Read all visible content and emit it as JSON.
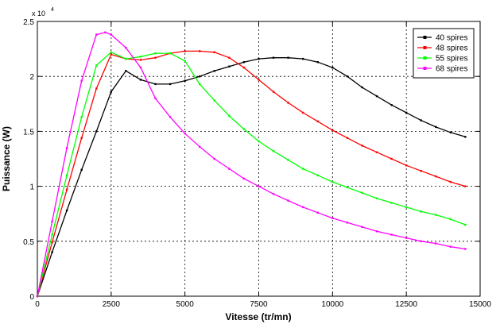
{
  "chart_data": {
    "type": "line",
    "title": "",
    "xlabel": "Vitesse (tr/mn)",
    "ylabel": "Puissance (W)",
    "xlim": [
      0,
      15000
    ],
    "ylim": [
      0,
      25000
    ],
    "x_ticks": [
      0,
      2500,
      5000,
      7500,
      10000,
      12500,
      15000
    ],
    "y_tick_labels": [
      "0",
      "0.5",
      "1",
      "1.5",
      "2",
      "2.5"
    ],
    "y_tick_values": [
      0,
      5000,
      10000,
      15000,
      20000,
      25000
    ],
    "y_exponent": "x 10",
    "y_exponent_power": "4",
    "grid": true,
    "legend_position": "top-right",
    "series": [
      {
        "name": "40 spires",
        "color": "#000000",
        "x": [
          0,
          500,
          1000,
          1500,
          2000,
          2500,
          3000,
          3500,
          4000,
          4500,
          5000,
          5500,
          6000,
          6500,
          7000,
          7500,
          8000,
          8500,
          9000,
          9500,
          10000,
          10500,
          11000,
          11500,
          12000,
          12500,
          13000,
          13500,
          14000,
          14500
        ],
        "y": [
          0,
          4000,
          7800,
          11500,
          15000,
          18600,
          20500,
          19700,
          19300,
          19300,
          19600,
          20000,
          20500,
          20900,
          21300,
          21600,
          21700,
          21700,
          21600,
          21300,
          20800,
          20000,
          19000,
          18200,
          17400,
          16700,
          16000,
          15400,
          14900,
          14500
        ]
      },
      {
        "name": "48 spires",
        "color": "#ff0000",
        "x": [
          0,
          500,
          1000,
          1500,
          2000,
          2500,
          3000,
          3500,
          4000,
          4500,
          5000,
          5500,
          6000,
          6500,
          7000,
          7500,
          8000,
          8500,
          9000,
          9500,
          10000,
          10500,
          11000,
          11500,
          12000,
          12500,
          13000,
          13500,
          14000,
          14500
        ],
        "y": [
          0,
          4900,
          9700,
          14400,
          18900,
          22000,
          21600,
          21500,
          21700,
          22100,
          22300,
          22300,
          22200,
          21700,
          20800,
          19700,
          18600,
          17600,
          16700,
          15900,
          15100,
          14400,
          13700,
          13100,
          12500,
          11900,
          11400,
          10900,
          10400,
          10000
        ]
      },
      {
        "name": "55 spires",
        "color": "#00ff00",
        "x": [
          0,
          500,
          1000,
          1500,
          2000,
          2500,
          3000,
          3500,
          4000,
          4500,
          5000,
          5500,
          6000,
          6500,
          7000,
          7500,
          8000,
          8500,
          9000,
          9500,
          10000,
          10500,
          11000,
          11500,
          12000,
          12500,
          13000,
          13500,
          14000,
          14500
        ],
        "y": [
          0,
          5600,
          11000,
          16300,
          21000,
          22200,
          21600,
          21800,
          22100,
          22100,
          21400,
          19300,
          17800,
          16400,
          15200,
          14100,
          13200,
          12400,
          11600,
          11000,
          10400,
          9900,
          9400,
          8900,
          8500,
          8100,
          7700,
          7400,
          7000,
          6500
        ]
      },
      {
        "name": "68 spires",
        "color": "#ff00ff",
        "x": [
          0,
          500,
          1000,
          1500,
          2000,
          2300,
          2500,
          3000,
          3500,
          4000,
          4500,
          5000,
          5500,
          6000,
          6500,
          7000,
          7500,
          8000,
          8500,
          9000,
          9500,
          10000,
          10500,
          11000,
          11500,
          12000,
          12500,
          13000,
          13500,
          14000,
          14500
        ],
        "y": [
          0,
          6800,
          13500,
          19600,
          23800,
          24000,
          23800,
          22600,
          20800,
          18000,
          16300,
          14800,
          13600,
          12500,
          11600,
          10700,
          10000,
          9300,
          8700,
          8100,
          7600,
          7100,
          6700,
          6300,
          5900,
          5600,
          5300,
          5000,
          4800,
          4500,
          4300
        ]
      }
    ]
  }
}
